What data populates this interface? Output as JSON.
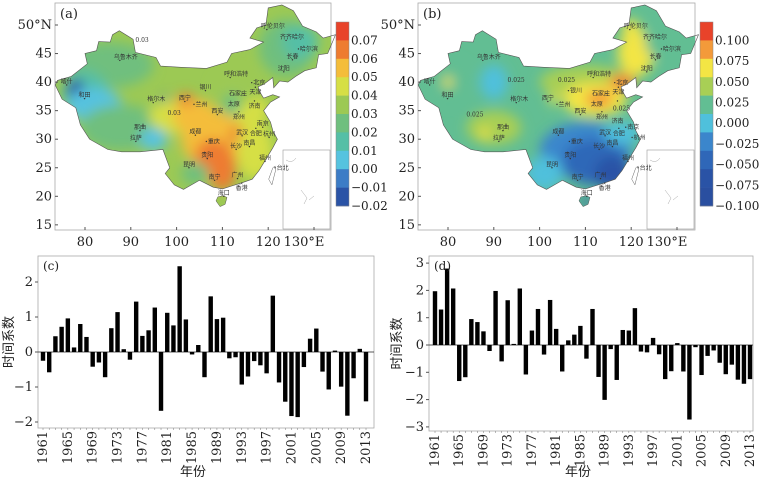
{
  "chart_data": [
    {
      "panel": "(a)",
      "type": "heatmap",
      "x_ticks": [
        "80",
        "90",
        "100",
        "110",
        "120",
        "130°E"
      ],
      "y_ticks": [
        "50°N",
        "45",
        "40",
        "35",
        "30",
        "25",
        "20",
        "15"
      ],
      "colorbar": {
        "labels": [
          "0.07",
          "0.06",
          "0.05",
          "0.04",
          "0.03",
          "0.02",
          "0.01",
          "0.00",
          "−0.01",
          "−0.02"
        ],
        "colors": [
          "#e8432a",
          "#ee7c30",
          "#f4bd3a",
          "#d6df45",
          "#9cc954",
          "#6fbf7e",
          "#55bfa6",
          "#56c3df",
          "#3c7cc6",
          "#2a53a6"
        ]
      },
      "contour_labels": [
        "0.03",
        "0.03"
      ],
      "cities": [
        "呼伦贝尔",
        "齐齐哈尔",
        "哈尔滨",
        "长春",
        "沈阳",
        "乌鲁木齐",
        "呼和浩特",
        "北京",
        "天津",
        "石家庄",
        "银川",
        "喀什",
        "和田",
        "格尔木",
        "西宁",
        "兰州",
        "太原",
        "济南",
        "郑州",
        "西安",
        "那曲",
        "拉萨",
        "成都",
        "重庆",
        "武汉",
        "南京",
        "合肥",
        "杭州",
        "长沙",
        "南昌",
        "贵阳",
        "昆明",
        "福州",
        "台北",
        "南宁",
        "广州",
        "香港",
        "海口"
      ]
    },
    {
      "panel": "(b)",
      "type": "heatmap",
      "x_ticks": [
        "80",
        "90",
        "100",
        "110",
        "120",
        "130°E"
      ],
      "y_ticks": [
        "50°N",
        "45",
        "40",
        "35",
        "30",
        "25",
        "20",
        "15"
      ],
      "colorbar": {
        "labels": [
          "0.100",
          "0.075",
          "0.050",
          "0.025",
          "0.000",
          "−0.025",
          "−0.050",
          "−0.075",
          "−0.100"
        ],
        "colors": [
          "#e8432a",
          "#f39a3a",
          "#f3e544",
          "#a8cf55",
          "#62be93",
          "#4fc0dc",
          "#3b86cc",
          "#2f67b8",
          "#2a53a6",
          "#2a4fa0"
        ]
      },
      "contour_labels": [
        "0.025",
        "0.025",
        "0.025",
        "0.025"
      ],
      "cities": [
        "呼伦贝尔",
        "齐齐哈尔",
        "哈尔滨",
        "长春",
        "沈阳",
        "乌鲁木齐",
        "呼和浩特",
        "北京",
        "天津",
        "石家庄",
        "银川",
        "喀什",
        "和田",
        "格尔木",
        "西宁",
        "兰州",
        "太原",
        "济南",
        "郑州",
        "西安",
        "那曲",
        "拉萨",
        "成都",
        "重庆",
        "武汉",
        "南京",
        "合肥",
        "杭州",
        "长沙",
        "南昌",
        "贵阳",
        "昆明",
        "福州",
        "台北",
        "南宁",
        "广州",
        "香港",
        "海口"
      ]
    },
    {
      "panel": "(c)",
      "type": "bar",
      "xlabel": "年份",
      "ylabel": "时间系数",
      "ylim": [
        -2.2,
        2.6
      ],
      "y_ticks": [
        "2",
        "1",
        "0",
        "−1",
        "−2"
      ],
      "x_ticks": [
        "1961",
        "1965",
        "1969",
        "1973",
        "1977",
        "1981",
        "1985",
        "1989",
        "1993",
        "1997",
        "2001",
        "2005",
        "2009",
        "2013"
      ],
      "start_year": 1961,
      "values": [
        -0.25,
        -0.58,
        0.45,
        0.72,
        0.96,
        0.13,
        0.8,
        0.43,
        -0.42,
        -0.3,
        -0.72,
        0.68,
        1.14,
        0.08,
        -0.22,
        1.44,
        0.46,
        0.62,
        1.27,
        -1.68,
        1.12,
        0.76,
        2.45,
        0.93,
        -0.07,
        0.2,
        -0.72,
        1.59,
        0.94,
        0.98,
        -0.18,
        -0.15,
        -0.93,
        -0.7,
        -0.26,
        -0.38,
        -0.61,
        1.61,
        -0.87,
        -1.42,
        -1.83,
        -1.86,
        -0.43,
        0.38,
        0.67,
        -0.56,
        -1.07,
        0.04,
        -0.99,
        -1.82,
        -0.75,
        0.09,
        -1.41
      ]
    },
    {
      "panel": "(d)",
      "type": "bar",
      "xlabel": "年份",
      "ylabel": "时间系数",
      "ylim": [
        -3.1,
        3.1
      ],
      "y_ticks": [
        "3",
        "2",
        "1",
        "0",
        "−1",
        "−2",
        "−3"
      ],
      "x_ticks": [
        "1961",
        "1965",
        "1969",
        "1973",
        "1977",
        "1981",
        "1985",
        "1989",
        "1993",
        "1997",
        "2001",
        "2005",
        "2009",
        "2013"
      ],
      "start_year": 1961,
      "values": [
        1.97,
        1.3,
        2.8,
        2.07,
        -1.32,
        -1.18,
        0.95,
        0.84,
        0.5,
        -0.22,
        1.98,
        -0.6,
        1.64,
        0.04,
        2.07,
        -1.08,
        0.53,
        1.32,
        -0.35,
        1.65,
        0.59,
        -0.97,
        0.17,
        0.38,
        0.7,
        -0.5,
        1.32,
        -1.17,
        -2.01,
        -0.15,
        -1.28,
        0.55,
        0.53,
        1.35,
        -0.24,
        -0.27,
        0.26,
        -0.34,
        -1.25,
        -0.96,
        0.07,
        -0.97,
        -2.73,
        -0.08,
        -1.1,
        -0.4,
        -0.2,
        -0.65,
        -1.07,
        -0.72,
        -1.27,
        -1.42,
        -1.25
      ]
    }
  ]
}
